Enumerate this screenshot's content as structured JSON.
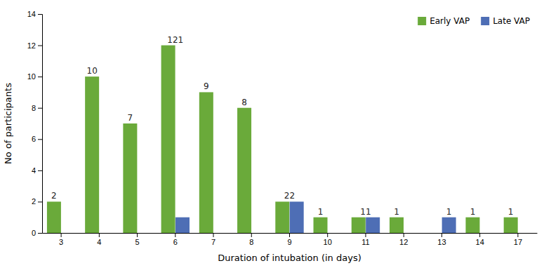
{
  "chart_data": {
    "type": "bar",
    "xlabel": "Duration of intubation (in days)",
    "ylabel": "No of participants",
    "categories": [
      "3",
      "4",
      "5",
      "6",
      "7",
      "8",
      "9",
      "10",
      "11",
      "12",
      "13",
      "14",
      "17"
    ],
    "series": [
      {
        "name": "Early VAP",
        "color": "#6aaa3a",
        "values": [
          2,
          10,
          7,
          12,
          9,
          8,
          2,
          1,
          1,
          1,
          0,
          1,
          1
        ]
      },
      {
        "name": "Late VAP",
        "color": "#4e6eb5",
        "values": [
          0,
          0,
          0,
          1,
          0,
          0,
          2,
          0,
          1,
          0,
          1,
          0,
          0
        ]
      }
    ],
    "ylim": [
      0,
      14
    ],
    "yticks": [
      0,
      2,
      4,
      6,
      8,
      10,
      12,
      14
    ],
    "grid": false,
    "legend": "upper-right",
    "annotations": [
      {
        "text": "2",
        "category": "3",
        "series": "Early VAP"
      },
      {
        "text": "10",
        "category": "4",
        "series": "Early VAP"
      },
      {
        "text": "7",
        "category": "5",
        "series": "Early VAP"
      },
      {
        "text": "121",
        "category": "6"
      },
      {
        "text": "9",
        "category": "7",
        "series": "Early VAP"
      },
      {
        "text": "8",
        "category": "8",
        "series": "Early VAP"
      },
      {
        "text": "22",
        "category": "9"
      },
      {
        "text": "1",
        "category": "10",
        "series": "Early VAP"
      },
      {
        "text": "11",
        "category": "11"
      },
      {
        "text": "1",
        "category": "12",
        "series": "Early VAP"
      },
      {
        "text": "1",
        "category": "13",
        "series": "Late VAP"
      },
      {
        "text": "1",
        "category": "14",
        "series": "Early VAP"
      },
      {
        "text": "1",
        "category": "17",
        "series": "Early VAP"
      }
    ]
  }
}
